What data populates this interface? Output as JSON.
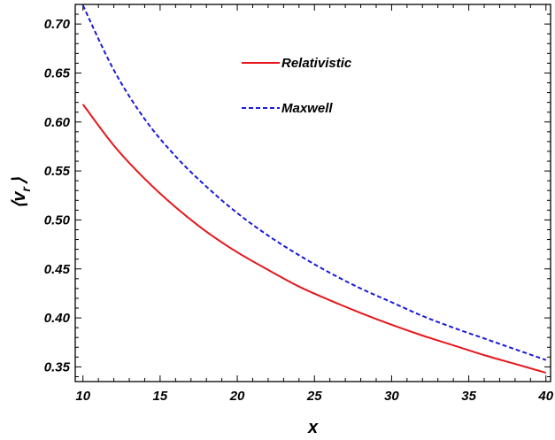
{
  "chart_data": {
    "type": "line",
    "title": "",
    "xlabel": "x",
    "ylabel_main": "⟨v",
    "ylabel_sub": "r",
    "ylabel_close": "⟩",
    "xlim": [
      9.5,
      40.3
    ],
    "ylim": [
      0.335,
      0.72
    ],
    "xticks": [
      10,
      15,
      20,
      25,
      30,
      35,
      40
    ],
    "xtick_labels": [
      "10",
      "15",
      "20",
      "25",
      "30",
      "35",
      "40"
    ],
    "yticks": [
      0.35,
      0.4,
      0.45,
      0.5,
      0.55,
      0.6,
      0.65,
      0.7
    ],
    "ytick_labels": [
      "0.35",
      "0.40",
      "0.45",
      "0.50",
      "0.55",
      "0.60",
      "0.65",
      "0.70"
    ],
    "legend_position": "top-center",
    "series": [
      {
        "name": "Relativistic",
        "color": "#e8161c",
        "dash": "solid",
        "x": [
          10,
          12,
          14,
          16,
          18,
          20,
          22,
          24,
          26,
          28,
          30,
          32,
          34,
          36,
          38,
          40
        ],
        "values": [
          0.618,
          0.576,
          0.542,
          0.513,
          0.488,
          0.467,
          0.449,
          0.432,
          0.418,
          0.405,
          0.393,
          0.382,
          0.372,
          0.362,
          0.353,
          0.344
        ]
      },
      {
        "name": "Maxwell",
        "color": "#1a1adc",
        "dash": "dashed",
        "x": [
          10,
          12,
          14,
          16,
          18,
          20,
          22,
          24,
          26,
          28,
          30,
          32,
          34,
          36,
          38,
          40
        ],
        "values": [
          0.719,
          0.653,
          0.603,
          0.565,
          0.534,
          0.507,
          0.484,
          0.464,
          0.446,
          0.43,
          0.416,
          0.402,
          0.39,
          0.379,
          0.368,
          0.357
        ]
      }
    ]
  }
}
